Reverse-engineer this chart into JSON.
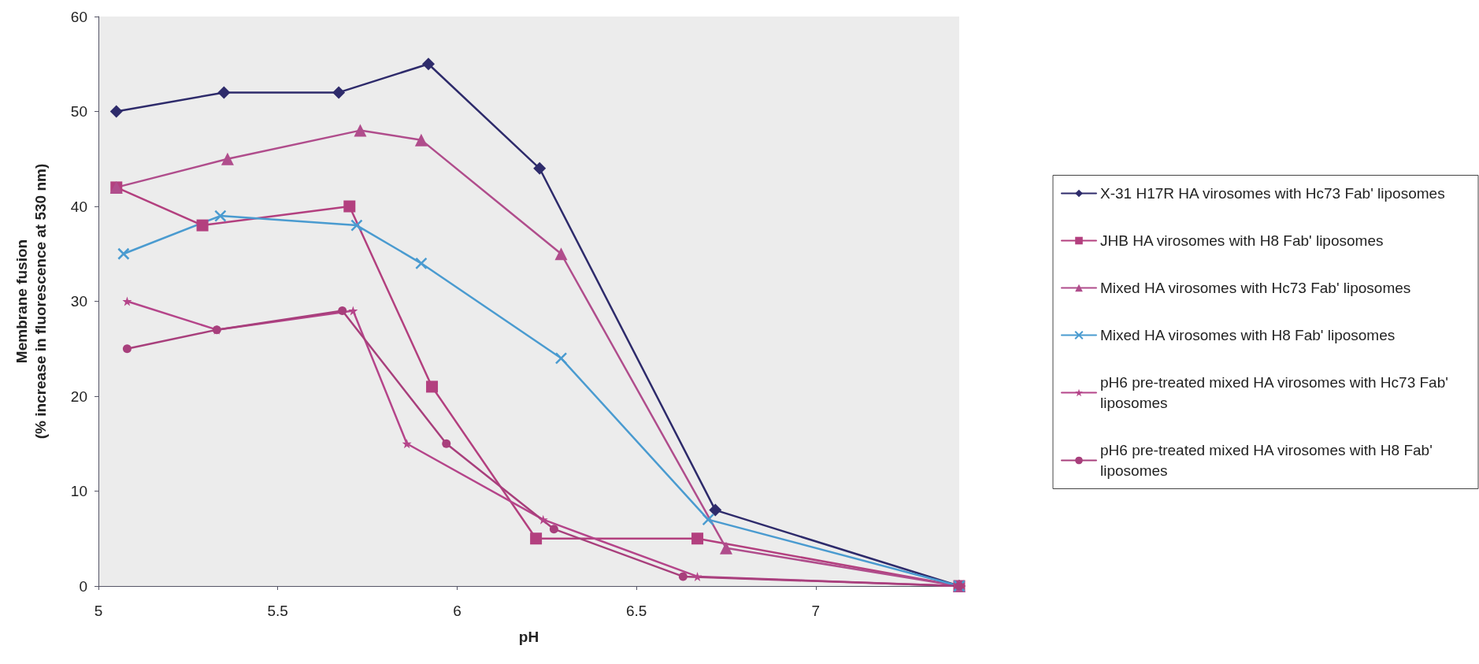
{
  "chart_data": {
    "type": "line",
    "xlabel": "pH",
    "ylabel": "Membrane fusion\n(% increase in fluorescence at 530 nm)",
    "xlim": [
      5,
      7.4
    ],
    "xticks": [
      5,
      5.5,
      6,
      6.5,
      7
    ],
    "ylim": [
      0,
      60
    ],
    "yticks": [
      0,
      10,
      20,
      30,
      40,
      50,
      60
    ],
    "grid": false,
    "legend": "right",
    "line_style": "solid",
    "series": [
      {
        "name": "X-31 H17R HA virosomes with Hc73 Fab' liposomes",
        "color": "#2e2b6b",
        "marker": "diamond",
        "x": [
          5.05,
          5.35,
          5.67,
          5.92,
          6.23,
          6.72,
          7.4
        ],
        "values": [
          50,
          52,
          52,
          55,
          44,
          8,
          0
        ]
      },
      {
        "name": "JHB HA virosomes with H8 Fab' liposomes",
        "color": "#b3407f",
        "marker": "square",
        "x": [
          5.05,
          5.29,
          5.7,
          5.93,
          6.22,
          6.67,
          7.4
        ],
        "values": [
          42,
          38,
          40,
          21,
          5,
          5,
          0
        ]
      },
      {
        "name": "Mixed HA virosomes with Hc73 Fab' liposomes",
        "color": "#b04d8c",
        "marker": "triangle",
        "x": [
          5.05,
          5.36,
          5.73,
          5.9,
          6.29,
          6.75,
          7.4
        ],
        "values": [
          42,
          45,
          48,
          47,
          35,
          4,
          0
        ]
      },
      {
        "name": "Mixed HA virosomes with H8 Fab' liposomes",
        "color": "#4a9bd0",
        "marker": "cross",
        "x": [
          5.07,
          5.34,
          5.72,
          5.9,
          6.29,
          6.7,
          7.4
        ],
        "values": [
          35,
          39,
          38,
          34,
          24,
          7,
          0
        ]
      },
      {
        "name": "pH6 pre-treated mixed HA virosomes with Hc73 Fab' liposomes",
        "color": "#b5458a",
        "marker": "star",
        "x": [
          5.08,
          5.33,
          5.71,
          5.86,
          6.24,
          6.67,
          7.4
        ],
        "values": [
          30,
          27,
          29,
          15,
          7,
          1,
          0
        ]
      },
      {
        "name": "pH6 pre-treated mixed HA virosomes with H8 Fab' liposomes",
        "color": "#a83f7c",
        "marker": "circle",
        "x": [
          5.08,
          5.33,
          5.68,
          5.97,
          6.27,
          6.63,
          7.4
        ],
        "values": [
          25,
          27,
          29,
          15,
          6,
          1,
          0
        ]
      }
    ]
  }
}
